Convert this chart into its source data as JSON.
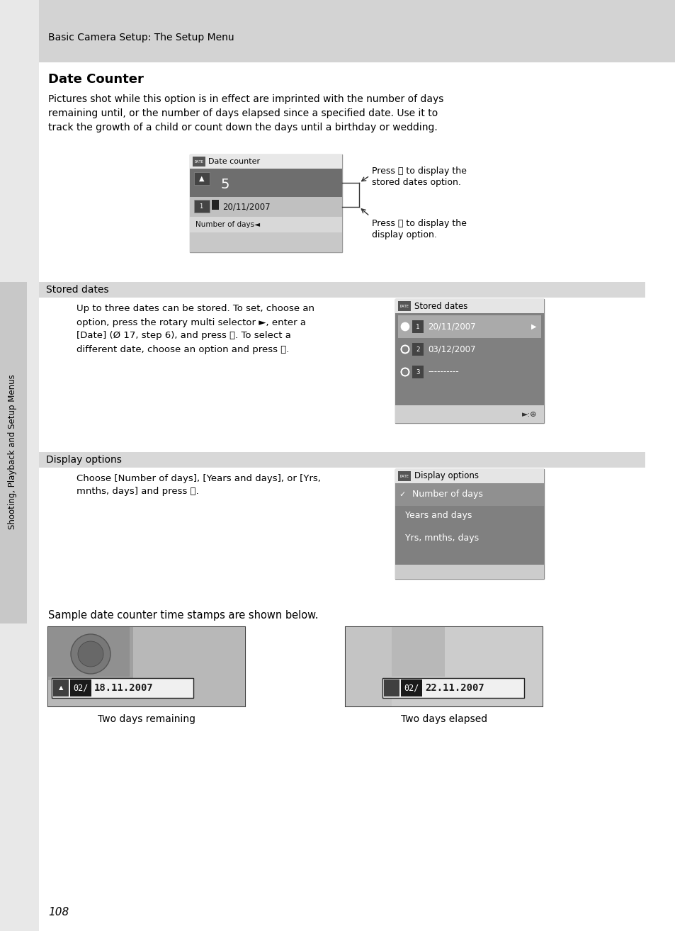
{
  "page_bg": "#ffffff",
  "header_bg": "#d3d3d3",
  "header_text": "Basic Camera Setup: The Setup Menu",
  "title": "Date Counter",
  "body_text_lines": [
    "Pictures shot while this option is in effect are imprinted with the number of days",
    "remaining until, or the number of days elapsed since a specified date. Use it to",
    "track the growth of a child or count down the days until a birthday or wedding."
  ],
  "section1_header": "Stored dates",
  "section1_header_bg": "#d8d8d8",
  "section1_body_lines": [
    "Up to three dates can be stored. To set, choose an",
    "option, press the rotary multi selector ►, enter a",
    "[Date] (Ø 17, step 6), and press ⒪. To select a",
    "different date, choose an option and press ⒪."
  ],
  "section2_header": "Display options",
  "section2_header_bg": "#d8d8d8",
  "section2_body_lines": [
    "Choose [Number of days], [Years and days], or [Yrs,",
    "mnths, days] and press ⒪."
  ],
  "sample_text": "Sample date counter time stamps are shown below.",
  "caption_left": "Two days remaining",
  "caption_right": "Two days elapsed",
  "page_number": "108",
  "sidebar_text": "Shooting, Playback and Setup Menus",
  "sidebar_bg": "#c8c8c8",
  "arrow_label1_lines": [
    "Press ⒪ to display the",
    "stored dates option."
  ],
  "arrow_label2_lines": [
    "Press ⒪ to display the",
    "display option."
  ]
}
